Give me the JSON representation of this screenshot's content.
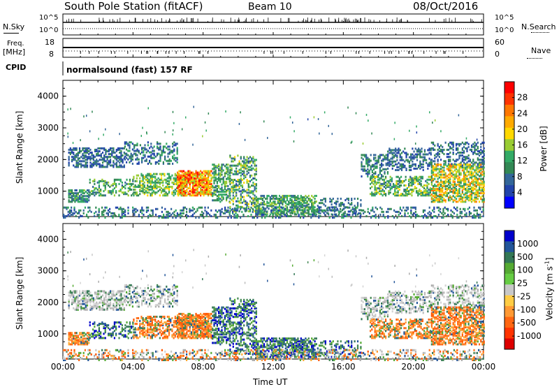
{
  "header": {
    "station": "South Pole Station (fitACF)",
    "beam": "Beam 10",
    "date": "08/Oct/2016"
  },
  "top_panels": {
    "nsky_label": "N.Sky",
    "nsky_ticks": [
      "10^5",
      "10^0"
    ],
    "nsearch_label": "N.Search",
    "nsearch_ticks": [
      "10^5",
      "10^0"
    ],
    "freq_label": "Freq.",
    "freq_unit": "[MHz]",
    "freq_ticks": [
      "18",
      "8"
    ],
    "nave_label": "Nave",
    "nave_ticks": [
      "60",
      "0"
    ],
    "cpid_label": "CPID",
    "mode_text": "normalsound (fast) 157 RF"
  },
  "chart_data": [
    {
      "type": "heatmap",
      "name_hint": "power",
      "ylabel": "Slant Range [km]",
      "yticks": [
        "4000",
        "3000",
        "2000",
        "1000"
      ],
      "ytick_values": [
        4000,
        3000,
        2000,
        1000
      ],
      "ylim": [
        200,
        4500
      ],
      "colorbar_label": "Power [dB]",
      "colorbar_ticks": [
        "28",
        "24",
        "20",
        "16",
        "12",
        "8",
        "4"
      ],
      "colorbar_values": [
        28,
        24,
        20,
        16,
        12,
        8,
        4
      ],
      "colorbar_colors": [
        "#ff0000",
        "#ff3300",
        "#ff7700",
        "#ffaa00",
        "#ffd800",
        "#99cc33",
        "#33aa66",
        "#338855",
        "#336699",
        "#2244aa",
        "#0000ff"
      ],
      "clim": [
        0,
        30
      ]
    },
    {
      "type": "heatmap",
      "name_hint": "velocity",
      "ylabel": "Slant Range [km]",
      "yticks": [
        "4000",
        "3000",
        "2000",
        "1000"
      ],
      "ytick_values": [
        4000,
        3000,
        2000,
        1000
      ],
      "ylim": [
        200,
        4500
      ],
      "xlabel": "Time UT",
      "xticks": [
        "00:00",
        "04:00",
        "08:00",
        "12:00",
        "16:00",
        "20:00",
        "00:00"
      ],
      "colorbar_label": "Velocity [m s",
      "colorbar_label_sup": "-1",
      "colorbar_ticks": [
        "1000",
        "500",
        "100",
        "25",
        "-25",
        "-100",
        "-500",
        "-1000"
      ],
      "colorbar_colors": [
        "#0000cc",
        "#225599",
        "#337755",
        "#55aa33",
        "#66cc44",
        "#c8c8c8",
        "#ffcc44",
        "#ff9933",
        "#ff6611",
        "#ff3300",
        "#dd0000"
      ]
    }
  ]
}
